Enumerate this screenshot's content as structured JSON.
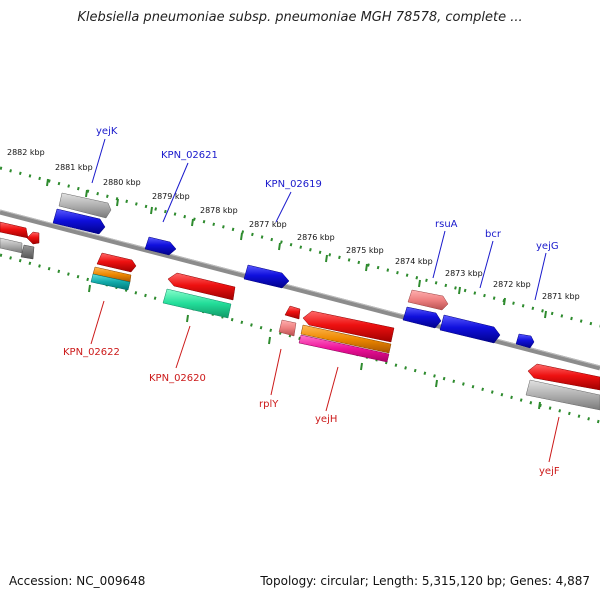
{
  "title": "Klebsiella pneumoniae subsp. pneumoniae MGH 78578, complete ...",
  "footer": {
    "accession": "Accession: NC_009648",
    "stats": "Topology: circular; Length: 5,315,120 bp; Genes: 4,887"
  },
  "ticks": [
    "2882 kbp",
    "2881 kbp",
    "2880 kbp",
    "2879 kbp",
    "2878 kbp",
    "2877 kbp",
    "2876 kbp",
    "2875 kbp",
    "2874 kbp",
    "2873 kbp",
    "2872 kbp",
    "2871 kbp"
  ],
  "upper_gene_labels": [
    "yejK",
    "KPN_02621",
    "KPN_02619",
    "rsuA",
    "bcr",
    "yejG"
  ],
  "lower_gene_labels": [
    "KPN_02622",
    "KPN_02620",
    "rplY",
    "yejH",
    "yejF"
  ],
  "colors": {
    "upper_label": "#1a1acc",
    "lower_label": "#cc1a1a",
    "backbone": "#777777",
    "ruler_dots": "#2e8b2e",
    "cds_blue": "#1010dd",
    "cds_red": "#ee1111",
    "gray_feature": "#aaaaaa",
    "pink_feature": "#ee8888",
    "orange_feature": "#ee8800",
    "teal_feature": "#11aaaa",
    "magenta_feature": "#ee1199",
    "green_feature": "#22dd99"
  }
}
